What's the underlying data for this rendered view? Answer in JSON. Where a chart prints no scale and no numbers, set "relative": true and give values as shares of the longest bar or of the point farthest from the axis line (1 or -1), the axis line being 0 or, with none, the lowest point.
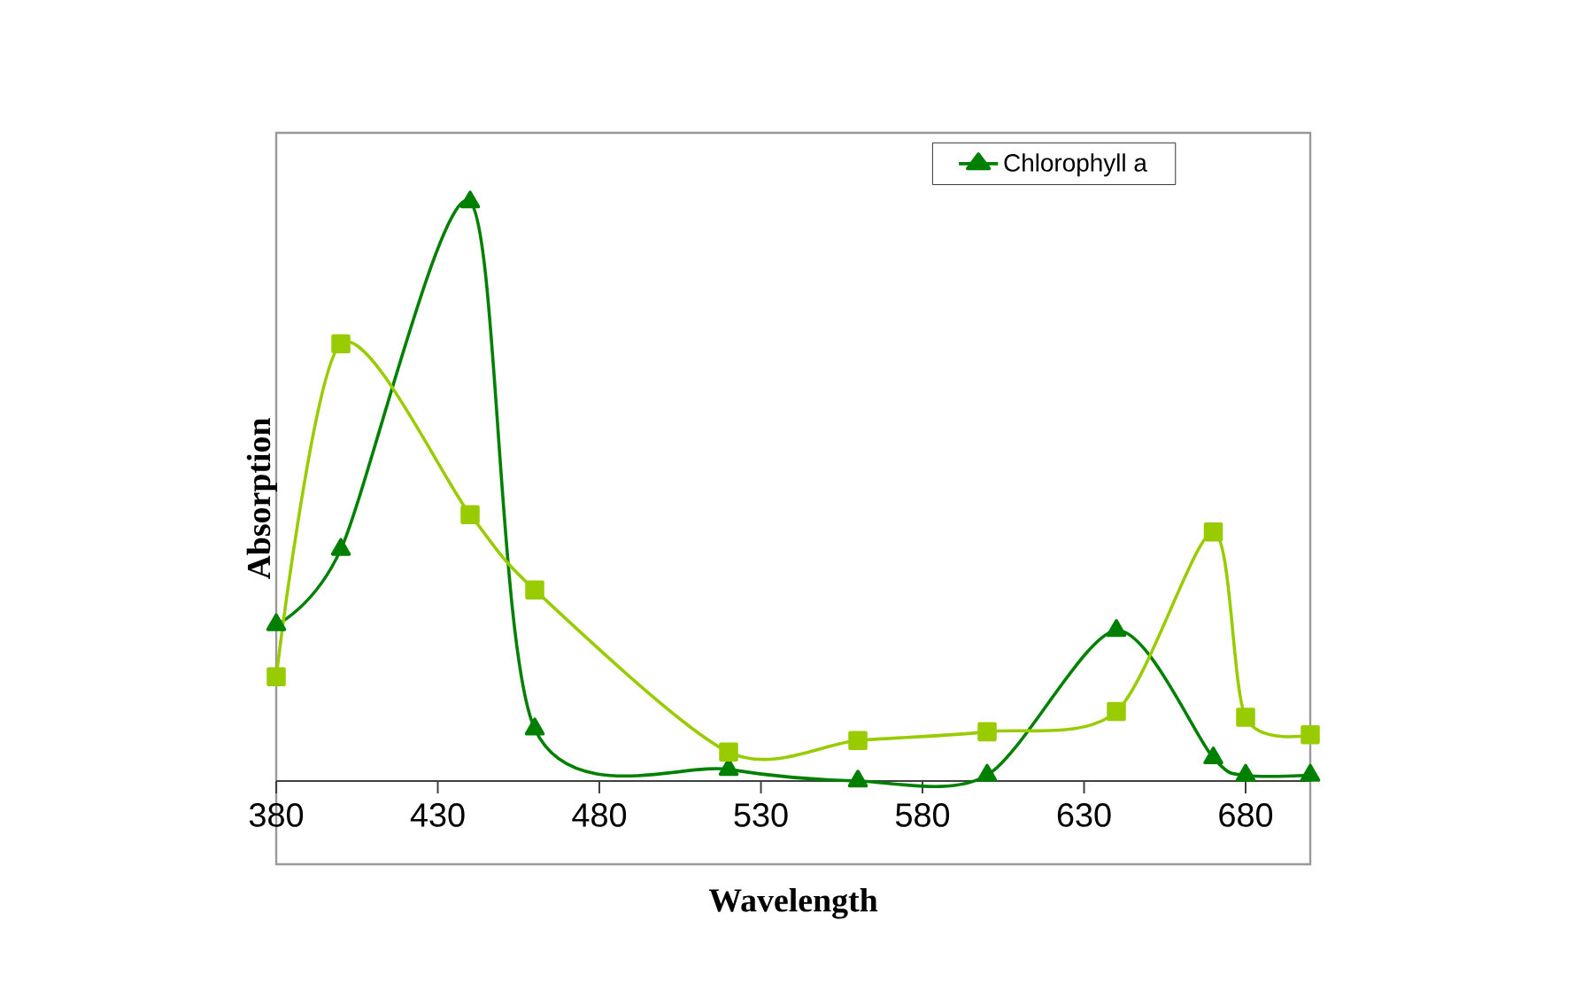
{
  "chart_data": {
    "type": "line",
    "xlabel": "Wavelength",
    "ylabel": "Absorption",
    "relative": true,
    "xlim": [
      380,
      700
    ],
    "xticks": [
      380,
      430,
      480,
      530,
      580,
      630,
      680
    ],
    "x": [
      380,
      400,
      440,
      460,
      520,
      560,
      600,
      640,
      670,
      680,
      700
    ],
    "series": [
      {
        "name": "Chlorophyll a",
        "color": "#008000",
        "marker": "triangle",
        "values": [
          0.27,
          0.4,
          1.0,
          0.09,
          0.02,
          0.0,
          0.01,
          0.26,
          0.04,
          0.01,
          0.01
        ]
      },
      {
        "color": "#99cc00",
        "marker": "square",
        "values": [
          0.18,
          0.755,
          0.46,
          0.33,
          0.05,
          0.07,
          0.085,
          0.12,
          0.43,
          0.11,
          0.08
        ]
      }
    ],
    "legend": "top right",
    "grid": false
  }
}
